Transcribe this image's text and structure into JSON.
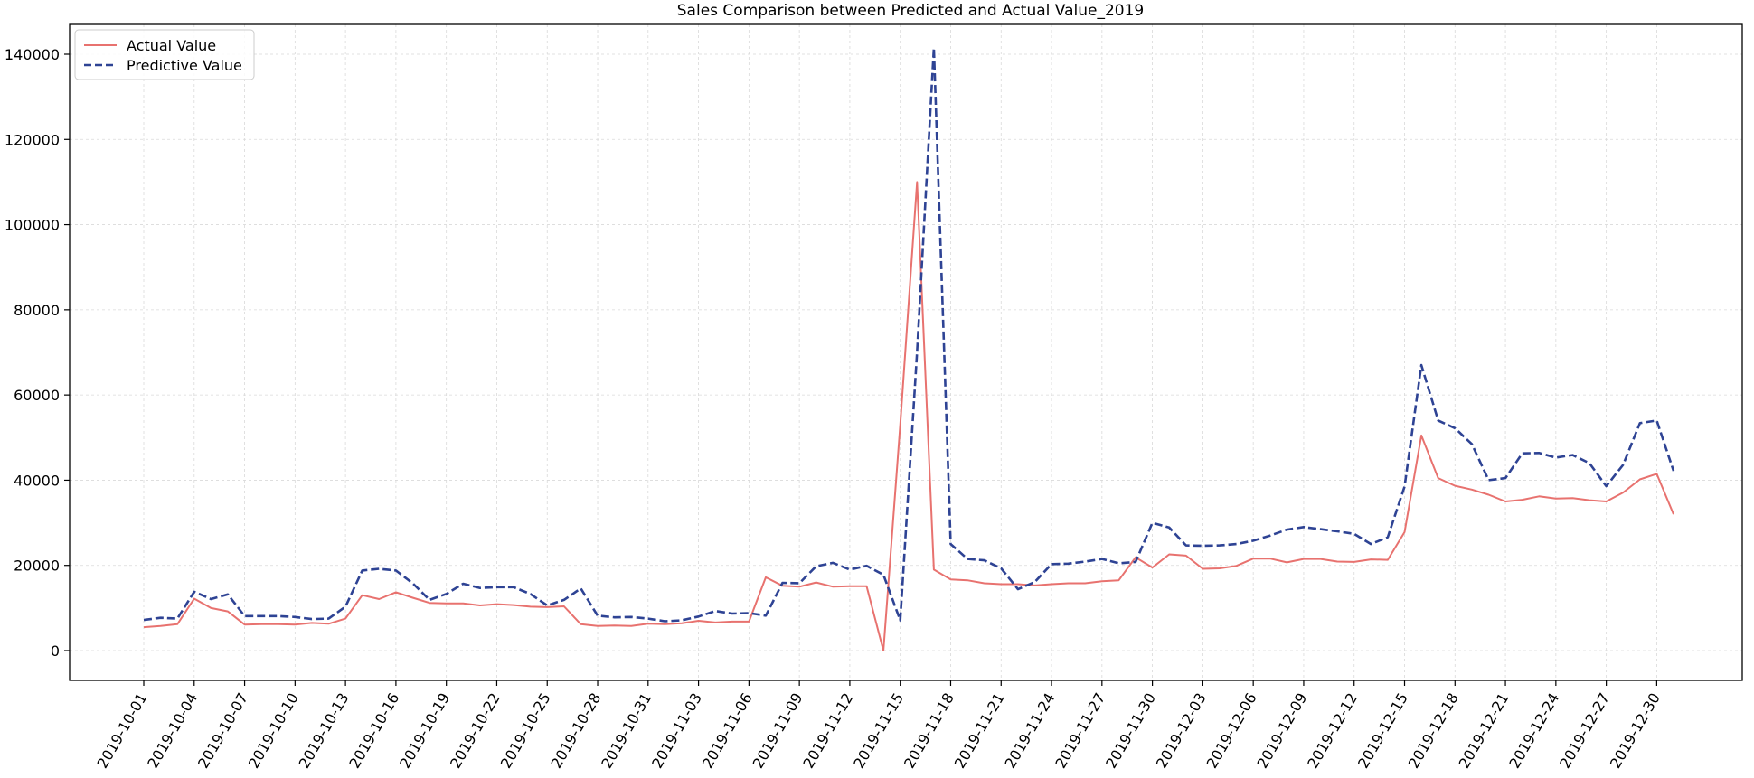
{
  "chart_data": {
    "type": "line",
    "title": "Sales Comparison between Predicted and Actual Value_2019",
    "xlabel": "",
    "ylabel": "",
    "x_start": "2019-10-01",
    "x_end": "2019-12-31",
    "ylim": [
      -7000,
      147000
    ],
    "yticks": [
      0,
      20000,
      40000,
      60000,
      80000,
      100000,
      120000,
      140000
    ],
    "xtick_labels": [
      "2019-10-01",
      "2019-10-04",
      "2019-10-07",
      "2019-10-10",
      "2019-10-13",
      "2019-10-16",
      "2019-10-19",
      "2019-10-22",
      "2019-10-25",
      "2019-10-28",
      "2019-10-31",
      "2019-11-03",
      "2019-11-06",
      "2019-11-09",
      "2019-11-12",
      "2019-11-15",
      "2019-11-18",
      "2019-11-21",
      "2019-11-24",
      "2019-11-27",
      "2019-11-30",
      "2019-12-03",
      "2019-12-06",
      "2019-12-09",
      "2019-12-12",
      "2019-12-15",
      "2019-12-18",
      "2019-12-21",
      "2019-12-24",
      "2019-12-27",
      "2019-12-30"
    ],
    "grid": true,
    "legend_position": "top-left",
    "series": [
      {
        "name": "Actual Value",
        "color": "#e8726f",
        "style": "solid",
        "values": [
          5500,
          5800,
          6200,
          12200,
          10000,
          9200,
          6100,
          6200,
          6200,
          6100,
          6500,
          6300,
          7500,
          13000,
          12100,
          13700,
          12400,
          11200,
          11100,
          11100,
          10600,
          10900,
          10700,
          10300,
          10200,
          10400,
          6200,
          5800,
          5900,
          5800,
          6300,
          6200,
          6400,
          7000,
          6600,
          6800,
          6800,
          17200,
          15200,
          15000,
          16000,
          15000,
          15100,
          15100,
          0,
          53000,
          110000,
          19000,
          16700,
          16500,
          15800,
          15600,
          15600,
          15300,
          15600,
          15800,
          15800,
          16300,
          16500,
          21900,
          19500,
          22600,
          22300,
          19200,
          19300,
          19900,
          21600,
          21600,
          20700,
          21500,
          21500,
          20900,
          20800,
          21400,
          21300,
          27800,
          50500,
          40500,
          38700,
          37800,
          36600,
          35000,
          35400,
          36200,
          35700,
          35800,
          35300,
          35000,
          37100,
          40200,
          41500,
          32000
        ]
      },
      {
        "name": "Predictive Value",
        "color": "#2e4394",
        "style": "dashed",
        "values": [
          7200,
          7700,
          7500,
          13800,
          12100,
          13200,
          8100,
          8100,
          8100,
          7900,
          7400,
          7500,
          10300,
          18800,
          19200,
          18800,
          15800,
          11900,
          13300,
          15700,
          14700,
          14900,
          14900,
          13300,
          10600,
          11900,
          14600,
          8200,
          7800,
          7900,
          7500,
          6900,
          7100,
          8000,
          9300,
          8700,
          8800,
          8200,
          15900,
          15800,
          19800,
          20600,
          19000,
          19900,
          17800,
          7100,
          70000,
          141500,
          25000,
          21500,
          21200,
          19300,
          14400,
          16100,
          20300,
          20400,
          20900,
          21500,
          20500,
          20800,
          30000,
          28900,
          24700,
          24600,
          24700,
          25000,
          25800,
          27000,
          28400,
          29000,
          28500,
          28000,
          27400,
          25000,
          26600,
          38500,
          67000,
          54000,
          52200,
          48500,
          40000,
          40500,
          46300,
          46400,
          45300,
          45900,
          44000,
          38600,
          43600,
          53400,
          54000,
          42200
        ]
      }
    ]
  }
}
